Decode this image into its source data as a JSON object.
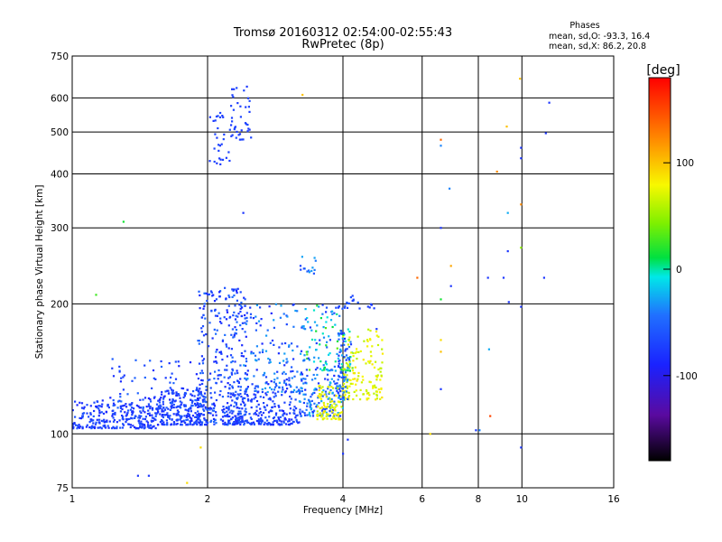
{
  "chart_data": {
    "type": "scatter",
    "title": "Tromsø 20160312 02:54:00-02:55:43",
    "subtitle": "RwPretec (8p)",
    "xlabel": "Frequency [MHz]",
    "ylabel": "Stationary phase Virtual Height [km]",
    "x_scale": "log",
    "y_scale": "log",
    "xlim": [
      1,
      16
    ],
    "ylim": [
      75,
      750
    ],
    "x_ticks": [
      1,
      2,
      4,
      6,
      8,
      10,
      16
    ],
    "x_tick_labels": [
      "1",
      "2",
      "4",
      "6",
      "8",
      "10",
      "16"
    ],
    "y_ticks": [
      75,
      100,
      200,
      300,
      400,
      500,
      600,
      750
    ],
    "y_tick_labels": [
      "75",
      "100",
      "200",
      "300",
      "400",
      "500",
      "600",
      "750"
    ],
    "grid": true,
    "stats": {
      "title": "Phases",
      "line1": "mean, sd,O: -93.3, 16.4",
      "line2": "mean, sd,X: 86.2, 20.8"
    },
    "colorbar": {
      "label": "[deg]",
      "min": -180,
      "max": 180,
      "ticks": [
        100,
        0,
        -100
      ],
      "tick_labels": [
        "100",
        "0",
        "-100"
      ]
    },
    "clusters": [
      {
        "f": [
          1.0,
          1.55
        ],
        "h": [
          103,
          120
        ],
        "n": 260,
        "phase": [
          -110,
          -80
        ]
      },
      {
        "f": [
          1.55,
          2.0
        ],
        "h": [
          105,
          128
        ],
        "n": 240,
        "phase": [
          -110,
          -80
        ]
      },
      {
        "f": [
          1.2,
          1.95
        ],
        "h": [
          115,
          150
        ],
        "n": 90,
        "phase": [
          -110,
          -70
        ]
      },
      {
        "f": [
          1.9,
          2.45
        ],
        "h": [
          105,
          220
        ],
        "n": 330,
        "phase": [
          -110,
          -70
        ]
      },
      {
        "f": [
          2.2,
          3.2
        ],
        "h": [
          105,
          125
        ],
        "n": 230,
        "phase": [
          -110,
          -80
        ]
      },
      {
        "f": [
          2.4,
          3.3
        ],
        "h": [
          125,
          200
        ],
        "n": 170,
        "phase": [
          -110,
          -40
        ]
      },
      {
        "f": [
          3.2,
          4.0
        ],
        "h": [
          110,
          140
        ],
        "n": 140,
        "phase": [
          -110,
          -30
        ]
      },
      {
        "f": [
          3.3,
          4.2
        ],
        "h": [
          140,
          200
        ],
        "n": 120,
        "phase": [
          -110,
          40
        ]
      },
      {
        "f": [
          3.5,
          4.0
        ],
        "h": [
          108,
          130
        ],
        "n": 90,
        "phase": [
          70,
          110
        ]
      },
      {
        "f": [
          4.0,
          4.9
        ],
        "h": [
          120,
          175
        ],
        "n": 140,
        "phase": [
          70,
          110
        ]
      },
      {
        "f": [
          3.9,
          4.1
        ],
        "h": [
          120,
          175
        ],
        "n": 60,
        "phase": [
          -100,
          -40
        ]
      },
      {
        "f": [
          3.6,
          4.7
        ],
        "h": [
          195,
          210
        ],
        "n": 25,
        "phase": [
          -100,
          -80
        ]
      },
      {
        "f": [
          3.2,
          3.5
        ],
        "h": [
          235,
          258
        ],
        "n": 14,
        "phase": [
          -100,
          -40
        ]
      },
      {
        "f": [
          2.0,
          2.25
        ],
        "h": [
          420,
          560
        ],
        "n": 30,
        "phase": [
          -100,
          -90
        ]
      },
      {
        "f": [
          2.25,
          2.5
        ],
        "h": [
          480,
          640
        ],
        "n": 40,
        "phase": [
          -100,
          -90
        ]
      }
    ],
    "sparse_points": [
      {
        "x": 1.3,
        "y": 310,
        "phase": 20
      },
      {
        "x": 1.13,
        "y": 210,
        "phase": 30
      },
      {
        "x": 2.4,
        "y": 325,
        "phase": -100
      },
      {
        "x": 3.25,
        "y": 610,
        "phase": 120
      },
      {
        "x": 1.48,
        "y": 80,
        "phase": -100
      },
      {
        "x": 1.4,
        "y": 80,
        "phase": -100
      },
      {
        "x": 1.8,
        "y": 77,
        "phase": 110
      },
      {
        "x": 1.93,
        "y": 93,
        "phase": 110
      },
      {
        "x": 4.0,
        "y": 90,
        "phase": -100
      },
      {
        "x": 4.1,
        "y": 97,
        "phase": -100
      },
      {
        "x": 4.75,
        "y": 175,
        "phase": -100
      },
      {
        "x": 5.85,
        "y": 230,
        "phase": 150
      },
      {
        "x": 6.25,
        "y": 100,
        "phase": 110
      },
      {
        "x": 6.6,
        "y": 480,
        "phase": 150
      },
      {
        "x": 6.6,
        "y": 465,
        "phase": -60
      },
      {
        "x": 6.6,
        "y": 300,
        "phase": -100
      },
      {
        "x": 6.6,
        "y": 205,
        "phase": 20
      },
      {
        "x": 6.6,
        "y": 165,
        "phase": 110
      },
      {
        "x": 6.6,
        "y": 155,
        "phase": 120
      },
      {
        "x": 6.6,
        "y": 127,
        "phase": -100
      },
      {
        "x": 6.9,
        "y": 370,
        "phase": -60
      },
      {
        "x": 6.95,
        "y": 245,
        "phase": 130
      },
      {
        "x": 6.95,
        "y": 220,
        "phase": -100
      },
      {
        "x": 7.9,
        "y": 102,
        "phase": -100
      },
      {
        "x": 8.05,
        "y": 102,
        "phase": -60
      },
      {
        "x": 8.4,
        "y": 230,
        "phase": -100
      },
      {
        "x": 8.45,
        "y": 157,
        "phase": -40
      },
      {
        "x": 8.5,
        "y": 110,
        "phase": 160
      },
      {
        "x": 8.8,
        "y": 405,
        "phase": 140
      },
      {
        "x": 9.1,
        "y": 230,
        "phase": -100
      },
      {
        "x": 9.25,
        "y": 515,
        "phase": 120
      },
      {
        "x": 9.3,
        "y": 325,
        "phase": -40
      },
      {
        "x": 9.3,
        "y": 265,
        "phase": -100
      },
      {
        "x": 9.35,
        "y": 202,
        "phase": -100
      },
      {
        "x": 9.9,
        "y": 665,
        "phase": 120
      },
      {
        "x": 9.95,
        "y": 460,
        "phase": -100
      },
      {
        "x": 9.95,
        "y": 435,
        "phase": -100
      },
      {
        "x": 9.95,
        "y": 340,
        "phase": 140
      },
      {
        "x": 9.95,
        "y": 270,
        "phase": 50
      },
      {
        "x": 9.95,
        "y": 197,
        "phase": -100
      },
      {
        "x": 9.95,
        "y": 93,
        "phase": -100
      },
      {
        "x": 11.2,
        "y": 230,
        "phase": -100
      },
      {
        "x": 11.5,
        "y": 585,
        "phase": -100
      },
      {
        "x": 11.3,
        "y": 497,
        "phase": -100
      }
    ]
  }
}
